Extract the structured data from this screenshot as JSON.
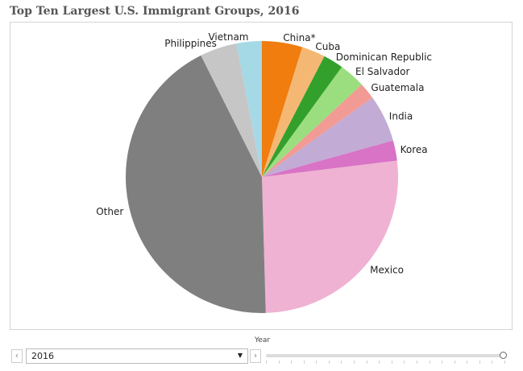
{
  "title": "Top Ten Largest U.S. Immigrant Groups, 2016",
  "chart_data": {
    "type": "pie",
    "title": "Top Ten Largest U.S. Immigrant Groups, 2016",
    "start": "12 o'clock, clockwise",
    "slices": [
      {
        "label": "China*",
        "value": 4.8,
        "color": "#f07d0e"
      },
      {
        "label": "Cuba",
        "value": 2.8,
        "color": "#f5b874"
      },
      {
        "label": "Dominican Republic",
        "value": 2.4,
        "color": "#34a02c"
      },
      {
        "label": "El Salvador",
        "value": 3.1,
        "color": "#9bde7f"
      },
      {
        "label": "Guatemala",
        "value": 2.0,
        "color": "#f29a94"
      },
      {
        "label": "India",
        "value": 5.6,
        "color": "#c2abd4"
      },
      {
        "label": "Korea",
        "value": 2.4,
        "color": "#d873c6"
      },
      {
        "label": "Mexico",
        "value": 26.5,
        "color": "#efb2d2"
      },
      {
        "label": "Other",
        "value": 43.1,
        "color": "#7f7f7f"
      },
      {
        "label": "Philippines",
        "value": 4.4,
        "color": "#c6c6c6"
      },
      {
        "label": "Vietnam",
        "value": 3.0,
        "color": "#a6d9e6"
      }
    ]
  },
  "filter": {
    "label": "Year",
    "selected": "2016",
    "prev_icon": "chevron-left-icon",
    "next_icon": "chevron-right-icon",
    "caret_icon": "caret-down-icon",
    "slider_position": 1.0
  }
}
